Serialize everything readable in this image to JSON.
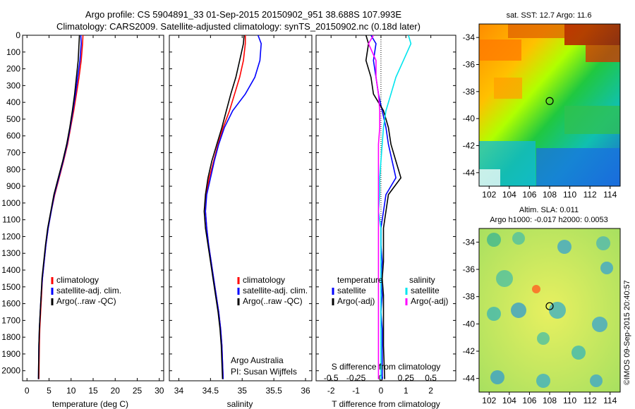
{
  "header": {
    "line1": "Argo profile: CS 5904891_33 01-Sep-2015 20150902_951 38.688S 107.993E",
    "line2": "Climatology: CARS2009. Satellite-adjusted climatology: synTS_20150902.nc (0.18d later)"
  },
  "side_credit": "©IMOS 09-Sep-2015 20:40:57",
  "annotations": {
    "org": "Argo Australia",
    "pi": "PI: Susan Wijffels",
    "sdiff_label": "S difference from climatology"
  },
  "colors": {
    "climatology": "#ff0000",
    "satellite": "#0000ff",
    "argo": "#000000",
    "salinity_satellite": "#00e5ee",
    "salinity_argo": "#ff00ff"
  },
  "chart_data": [
    {
      "type": "line",
      "name": "temperature-profile",
      "xlabel": "temperature (deg C)",
      "ylabel": "",
      "xlim": [
        -1,
        31
      ],
      "ylim": [
        2060,
        0
      ],
      "xticks": [
        0,
        5,
        10,
        15,
        20,
        25,
        30
      ],
      "yticks": [
        0,
        100,
        200,
        300,
        400,
        500,
        600,
        700,
        800,
        900,
        1000,
        1100,
        1200,
        1300,
        1400,
        1500,
        1600,
        1700,
        1800,
        1900,
        2000
      ],
      "legend": {
        "position": "lower-middle",
        "entries": [
          "climatology",
          "satellite-adj. clim.",
          "Argo(..raw -QC)"
        ]
      },
      "series": [
        {
          "name": "climatology",
          "color": "#ff0000",
          "x": [
            12.7,
            12.6,
            12.3,
            11.8,
            11.2,
            10.6,
            9.9,
            9.2,
            8.3,
            7.3,
            6.3,
            5.5,
            4.8,
            4.3,
            3.9,
            3.5,
            3.3,
            3.1,
            2.9,
            2.8,
            2.7
          ],
          "y": [
            0,
            50,
            150,
            250,
            350,
            450,
            550,
            650,
            750,
            850,
            950,
            1050,
            1150,
            1250,
            1350,
            1450,
            1550,
            1650,
            1750,
            1850,
            2050
          ]
        },
        {
          "name": "satellite-adj. clim.",
          "color": "#0000ff",
          "x": [
            12.2,
            12.3,
            12.0,
            11.5,
            11.0,
            10.4,
            9.8,
            9.1,
            8.2,
            7.2,
            6.2,
            5.5,
            4.8,
            4.3,
            3.9,
            3.5,
            3.2,
            3.0,
            2.8,
            2.7,
            2.6
          ],
          "y": [
            0,
            50,
            150,
            250,
            350,
            450,
            550,
            650,
            750,
            850,
            950,
            1050,
            1150,
            1250,
            1350,
            1450,
            1550,
            1650,
            1750,
            1850,
            2050
          ]
        },
        {
          "name": "Argo(..raw -QC)",
          "color": "#000000",
          "x": [
            11.9,
            11.8,
            11.6,
            11.2,
            10.8,
            10.3,
            9.7,
            9.0,
            8.1,
            7.1,
            6.1,
            5.4,
            4.7,
            4.2,
            3.8,
            3.4,
            3.2,
            3.0,
            2.8,
            2.7,
            2.6
          ],
          "y": [
            0,
            50,
            150,
            250,
            350,
            450,
            550,
            650,
            750,
            850,
            950,
            1050,
            1150,
            1250,
            1350,
            1450,
            1550,
            1650,
            1750,
            1850,
            2050
          ]
        }
      ]
    },
    {
      "type": "line",
      "name": "salinity-profile",
      "xlabel": "salinity",
      "xlim": [
        33.85,
        36.1
      ],
      "ylim": [
        2060,
        0
      ],
      "xticks": [
        34,
        34.5,
        35,
        35.5,
        36
      ],
      "legend": {
        "position": "lower-right",
        "entries": [
          "climatology",
          "satellite-adj. clim.",
          "Argo(..raw -QC)"
        ]
      },
      "series": [
        {
          "name": "climatology",
          "color": "#ff0000",
          "x": [
            35.05,
            35.05,
            35.02,
            34.96,
            34.88,
            34.8,
            34.7,
            34.62,
            34.55,
            34.48,
            34.43,
            34.42,
            34.44,
            34.47,
            34.51,
            34.55,
            34.59,
            34.63,
            34.66,
            34.68,
            34.7
          ],
          "y": [
            0,
            50,
            150,
            250,
            350,
            450,
            550,
            650,
            750,
            850,
            950,
            1050,
            1150,
            1250,
            1350,
            1450,
            1550,
            1650,
            1750,
            1850,
            2050
          ]
        },
        {
          "name": "satellite-adj. clim.",
          "color": "#0000ff",
          "x": [
            35.25,
            35.3,
            35.28,
            35.2,
            35.05,
            34.85,
            34.72,
            34.63,
            34.56,
            34.5,
            34.44,
            34.42,
            34.44,
            34.47,
            34.51,
            34.55,
            34.59,
            34.63,
            34.66,
            34.68,
            34.7
          ],
          "y": [
            0,
            50,
            150,
            250,
            350,
            450,
            550,
            650,
            750,
            850,
            950,
            1050,
            1150,
            1250,
            1350,
            1450,
            1550,
            1650,
            1750,
            1850,
            2050
          ]
        },
        {
          "name": "Argo(..raw -QC)",
          "color": "#000000",
          "x": [
            35.03,
            35.02,
            34.96,
            34.9,
            34.82,
            34.75,
            34.68,
            34.6,
            34.52,
            34.46,
            34.42,
            34.4,
            34.42,
            34.46,
            34.5,
            34.54,
            34.58,
            34.62,
            34.65,
            34.67,
            34.69
          ],
          "y": [
            0,
            50,
            150,
            250,
            350,
            450,
            550,
            650,
            750,
            850,
            950,
            1050,
            1150,
            1250,
            1350,
            1450,
            1550,
            1650,
            1750,
            1850,
            2050
          ]
        }
      ]
    },
    {
      "type": "line",
      "name": "difference-profile",
      "xlabel": "T difference from climatology",
      "xlim": [
        -2.6,
        3.0
      ],
      "ylim": [
        2060,
        0
      ],
      "xticks": [
        -2,
        -1,
        0,
        1,
        2
      ],
      "xticks_top": [
        -0.5,
        -0.25,
        0,
        0.25,
        0.5
      ],
      "legend": {
        "position": "lower-middle",
        "groups": [
          {
            "title": "temperature",
            "entries": [
              "satellite",
              "Argo(-adj)"
            ]
          },
          {
            "title": "salinity",
            "entries": [
              "satellite",
              "Argo(-adj)"
            ]
          }
        ]
      },
      "series": [
        {
          "name": "temperature satellite",
          "color": "#0000ff",
          "x": [
            -0.4,
            -0.2,
            -0.3,
            -0.2,
            -0.1,
            0.05,
            0.2,
            0.3,
            0.45,
            0.6,
            0.2,
            0.1,
            0.0,
            0.0,
            0.05,
            0.0,
            0.05,
            0.0,
            0.05,
            0.05,
            0.05
          ],
          "y": [
            0,
            50,
            150,
            250,
            350,
            450,
            550,
            650,
            750,
            850,
            950,
            1050,
            1150,
            1250,
            1350,
            1450,
            1550,
            1650,
            1750,
            1850,
            2050
          ]
        },
        {
          "name": "temperature Argo(-adj)",
          "color": "#000000",
          "x": [
            -0.6,
            -0.5,
            -0.6,
            -0.4,
            -0.3,
            0.1,
            0.3,
            0.4,
            0.6,
            0.8,
            0.3,
            0.2,
            0.1,
            0.1,
            0.1,
            0.05,
            0.1,
            0.1,
            0.1,
            0.1,
            0.15
          ],
          "y": [
            0,
            50,
            150,
            250,
            350,
            450,
            550,
            650,
            750,
            850,
            950,
            1050,
            1150,
            1250,
            1350,
            1450,
            1550,
            1650,
            1750,
            1850,
            2050
          ]
        },
        {
          "name": "salinity satellite",
          "color": "#00e5ee",
          "x": [
            1.1,
            1.2,
            0.9,
            0.6,
            0.4,
            0.2,
            0.1,
            0.05,
            0.0,
            -0.05,
            -0.05,
            -0.1,
            0.0,
            0.0,
            0.0,
            0.0,
            0.0,
            0.0,
            0.0,
            0.0,
            0.0
          ],
          "y": [
            0,
            50,
            150,
            250,
            350,
            450,
            550,
            650,
            750,
            850,
            950,
            1050,
            1150,
            1250,
            1350,
            1450,
            1550,
            1650,
            1750,
            1850,
            2050
          ]
        },
        {
          "name": "salinity Argo(-adj)",
          "color": "#ff00ff",
          "x": [
            -0.3,
            -0.5,
            -0.2,
            -0.2,
            -0.1,
            -0.05,
            -0.05,
            -0.1,
            -0.1,
            -0.1,
            -0.1,
            -0.1,
            -0.1,
            -0.1,
            -0.1,
            -0.1,
            -0.1,
            -0.1,
            -0.1,
            -0.1,
            -0.1
          ],
          "y": [
            0,
            50,
            150,
            250,
            350,
            450,
            550,
            650,
            750,
            850,
            950,
            1050,
            1150,
            1250,
            1350,
            1450,
            1550,
            1650,
            1750,
            1850,
            2050
          ]
        }
      ]
    },
    {
      "type": "heatmap",
      "name": "sst-map",
      "title": "sat. SST: 12.7 Argo: 11.6",
      "xlim": [
        101,
        115
      ],
      "ylim": [
        -45,
        -33
      ],
      "xticks": [
        102,
        104,
        106,
        108,
        110,
        112,
        114
      ],
      "yticks": [
        -34,
        -36,
        -38,
        -40,
        -42,
        -44
      ],
      "marker": {
        "lon": 108.0,
        "lat": -38.7
      }
    },
    {
      "type": "heatmap",
      "name": "sla-map",
      "title": "Altim. SLA: 0.011",
      "subtitle": "Argo h1000: -0.017 h2000: 0.0053",
      "xlim": [
        101,
        115
      ],
      "ylim": [
        -45,
        -33
      ],
      "xticks": [
        102,
        104,
        106,
        108,
        110,
        112,
        114
      ],
      "yticks": [
        -34,
        -36,
        -38,
        -40,
        -42,
        -44
      ],
      "marker": {
        "lon": 108.0,
        "lat": -38.7
      }
    }
  ]
}
